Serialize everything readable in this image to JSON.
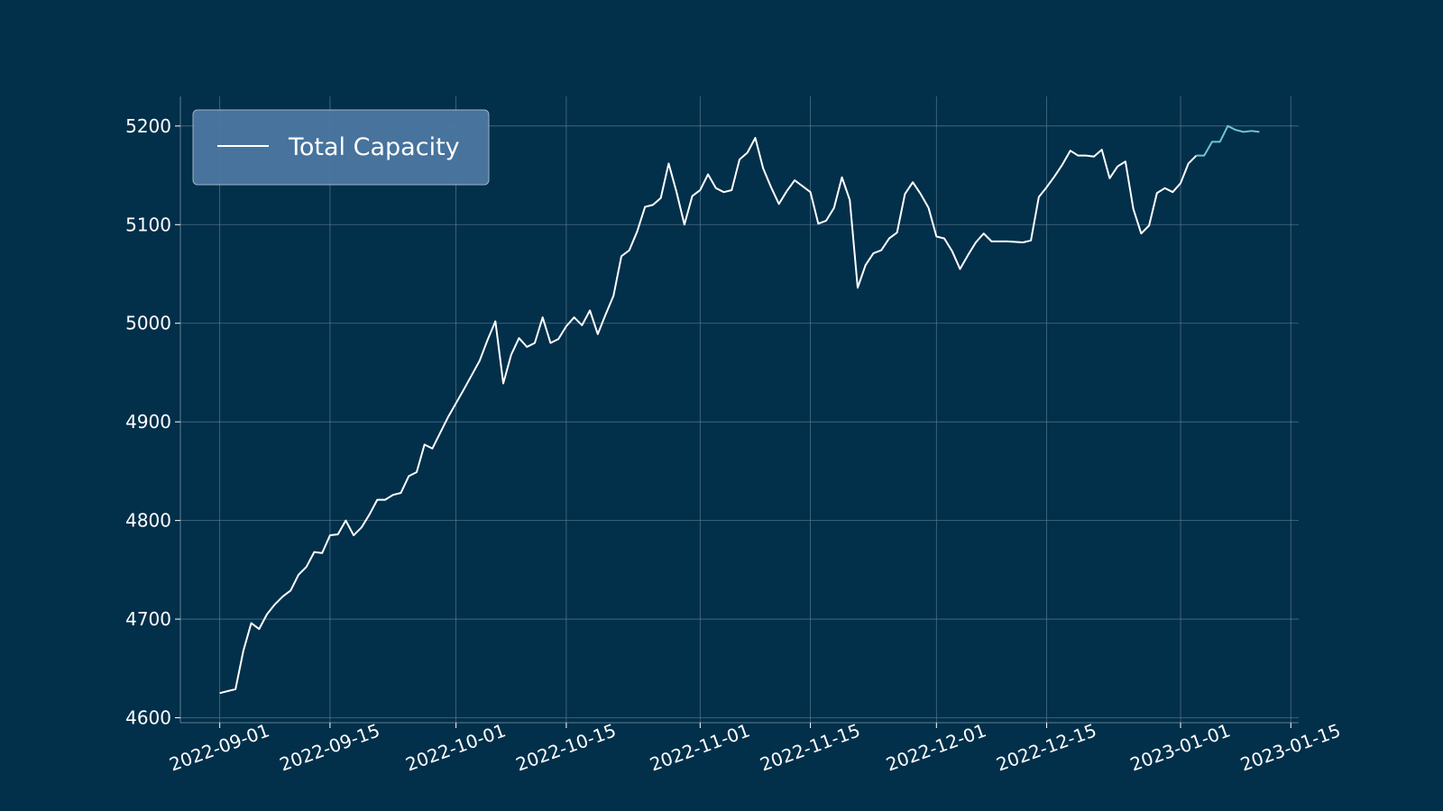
{
  "colors": {
    "background": "#022f4a",
    "grid": "#5f7f93",
    "line": "#ffffff",
    "tail": "#6ec6d6",
    "legend_fill": "#4d7aa3",
    "legend_border": "#9fb3c4",
    "text": "#ffffff"
  },
  "chart_data": {
    "type": "line",
    "title": "",
    "xlabel": "",
    "ylabel": "",
    "xlim": [
      "2022-08-27",
      "2023-01-16"
    ],
    "ylim": [
      4595,
      5230
    ],
    "grid": true,
    "legend": {
      "placement": "top-left",
      "entries": [
        "Total Capacity"
      ]
    },
    "x_ticks": [
      "2022-09-01",
      "2022-09-15",
      "2022-10-01",
      "2022-10-15",
      "2022-11-01",
      "2022-11-15",
      "2022-12-01",
      "2022-12-15",
      "2023-01-01",
      "2023-01-15"
    ],
    "y_ticks": [
      4600,
      4700,
      4800,
      4900,
      5000,
      5100,
      5200
    ],
    "highlight_from": "2023-01-03",
    "series": [
      {
        "name": "Total Capacity",
        "points": [
          [
            "2022-09-01",
            4625
          ],
          [
            "2022-09-03",
            4629
          ],
          [
            "2022-09-04",
            4668
          ],
          [
            "2022-09-05",
            4696
          ],
          [
            "2022-09-06",
            4690
          ],
          [
            "2022-09-07",
            4705
          ],
          [
            "2022-09-08",
            4715
          ],
          [
            "2022-09-09",
            4723
          ],
          [
            "2022-09-10",
            4729
          ],
          [
            "2022-09-11",
            4745
          ],
          [
            "2022-09-12",
            4753
          ],
          [
            "2022-09-13",
            4768
          ],
          [
            "2022-09-14",
            4767
          ],
          [
            "2022-09-15",
            4785
          ],
          [
            "2022-09-16",
            4786
          ],
          [
            "2022-09-17",
            4800
          ],
          [
            "2022-09-18",
            4785
          ],
          [
            "2022-09-19",
            4793
          ],
          [
            "2022-09-20",
            4806
          ],
          [
            "2022-09-21",
            4821
          ],
          [
            "2022-09-22",
            4821
          ],
          [
            "2022-09-23",
            4826
          ],
          [
            "2022-09-24",
            4828
          ],
          [
            "2022-09-25",
            4845
          ],
          [
            "2022-09-26",
            4849
          ],
          [
            "2022-09-27",
            4877
          ],
          [
            "2022-09-28",
            4873
          ],
          [
            "2022-09-29",
            4889
          ],
          [
            "2022-09-30",
            4905
          ],
          [
            "2022-10-02",
            4933
          ],
          [
            "2022-10-04",
            4962
          ],
          [
            "2022-10-05",
            4983
          ],
          [
            "2022-10-06",
            5002
          ],
          [
            "2022-10-07",
            4939
          ],
          [
            "2022-10-08",
            4968
          ],
          [
            "2022-10-09",
            4985
          ],
          [
            "2022-10-10",
            4976
          ],
          [
            "2022-10-11",
            4980
          ],
          [
            "2022-10-12",
            5006
          ],
          [
            "2022-10-13",
            4980
          ],
          [
            "2022-10-14",
            4984
          ],
          [
            "2022-10-15",
            4997
          ],
          [
            "2022-10-16",
            5006
          ],
          [
            "2022-10-17",
            4998
          ],
          [
            "2022-10-18",
            5013
          ],
          [
            "2022-10-19",
            4989
          ],
          [
            "2022-10-20",
            5009
          ],
          [
            "2022-10-21",
            5028
          ],
          [
            "2022-10-22",
            5068
          ],
          [
            "2022-10-23",
            5074
          ],
          [
            "2022-10-24",
            5093
          ],
          [
            "2022-10-25",
            5118
          ],
          [
            "2022-10-26",
            5120
          ],
          [
            "2022-10-27",
            5127
          ],
          [
            "2022-10-28",
            5162
          ],
          [
            "2022-10-29",
            5133
          ],
          [
            "2022-10-30",
            5100
          ],
          [
            "2022-10-31",
            5129
          ],
          [
            "2022-11-01",
            5135
          ],
          [
            "2022-11-02",
            5151
          ],
          [
            "2022-11-03",
            5137
          ],
          [
            "2022-11-04",
            5133
          ],
          [
            "2022-11-05",
            5135
          ],
          [
            "2022-11-06",
            5166
          ],
          [
            "2022-11-07",
            5173
          ],
          [
            "2022-11-08",
            5188
          ],
          [
            "2022-11-09",
            5157
          ],
          [
            "2022-11-10",
            5138
          ],
          [
            "2022-11-11",
            5121
          ],
          [
            "2022-11-12",
            5134
          ],
          [
            "2022-11-13",
            5145
          ],
          [
            "2022-11-14",
            5139
          ],
          [
            "2022-11-15",
            5133
          ],
          [
            "2022-11-16",
            5101
          ],
          [
            "2022-11-17",
            5104
          ],
          [
            "2022-11-18",
            5117
          ],
          [
            "2022-11-19",
            5148
          ],
          [
            "2022-11-20",
            5125
          ],
          [
            "2022-11-21",
            5036
          ],
          [
            "2022-11-22",
            5059
          ],
          [
            "2022-11-23",
            5071
          ],
          [
            "2022-11-24",
            5074
          ],
          [
            "2022-11-25",
            5086
          ],
          [
            "2022-11-26",
            5092
          ],
          [
            "2022-11-27",
            5131
          ],
          [
            "2022-11-28",
            5143
          ],
          [
            "2022-11-29",
            5131
          ],
          [
            "2022-11-30",
            5117
          ],
          [
            "2022-12-01",
            5088
          ],
          [
            "2022-12-02",
            5086
          ],
          [
            "2022-12-03",
            5073
          ],
          [
            "2022-12-04",
            5055
          ],
          [
            "2022-12-05",
            5069
          ],
          [
            "2022-12-06",
            5082
          ],
          [
            "2022-12-07",
            5091
          ],
          [
            "2022-12-08",
            5083
          ],
          [
            "2022-12-10",
            5083
          ],
          [
            "2022-12-12",
            5082
          ],
          [
            "2022-12-13",
            5084
          ],
          [
            "2022-12-14",
            5128
          ],
          [
            "2022-12-15",
            5138
          ],
          [
            "2022-12-16",
            5149
          ],
          [
            "2022-12-17",
            5161
          ],
          [
            "2022-12-18",
            5175
          ],
          [
            "2022-12-19",
            5170
          ],
          [
            "2022-12-20",
            5170
          ],
          [
            "2022-12-21",
            5169
          ],
          [
            "2022-12-22",
            5176
          ],
          [
            "2022-12-23",
            5147
          ],
          [
            "2022-12-24",
            5159
          ],
          [
            "2022-12-25",
            5164
          ],
          [
            "2022-12-26",
            5116
          ],
          [
            "2022-12-27",
            5091
          ],
          [
            "2022-12-28",
            5099
          ],
          [
            "2022-12-29",
            5132
          ],
          [
            "2022-12-30",
            5137
          ],
          [
            "2022-12-31",
            5133
          ],
          [
            "2023-01-01",
            5142
          ],
          [
            "2023-01-02",
            5162
          ],
          [
            "2023-01-03",
            5170
          ],
          [
            "2023-01-04",
            5170
          ],
          [
            "2023-01-05",
            5184
          ],
          [
            "2023-01-06",
            5184
          ],
          [
            "2023-01-07",
            5200
          ],
          [
            "2023-01-08",
            5196
          ],
          [
            "2023-01-09",
            5194
          ],
          [
            "2023-01-10",
            5195
          ],
          [
            "2023-01-11",
            5194
          ]
        ]
      }
    ]
  }
}
